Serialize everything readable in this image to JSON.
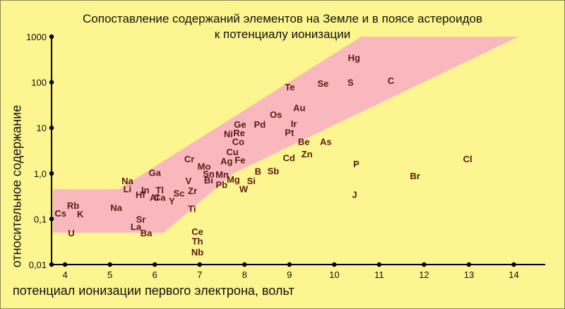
{
  "chart_data": {
    "type": "scatter",
    "title_lines": [
      "Сопоставление содержаний элементов на Земле и в поясе астероидов",
      "к потенциалу ионизации"
    ],
    "xlabel": "потенциал ионизации первого электрона, вольт",
    "ylabel": "относительное содержание",
    "xlim": [
      3.7,
      14.7
    ],
    "ylim": [
      0.01,
      1000
    ],
    "y_scale": "log",
    "x_ticks": [
      {
        "value": 4,
        "label": "4"
      },
      {
        "value": 5,
        "label": "5"
      },
      {
        "value": 6,
        "label": "6"
      },
      {
        "value": 7,
        "label": "7"
      },
      {
        "value": 8,
        "label": "8"
      },
      {
        "value": 9,
        "label": "9"
      },
      {
        "value": 10,
        "label": "10"
      },
      {
        "value": 11,
        "label": "11"
      },
      {
        "value": 12,
        "label": "12"
      },
      {
        "value": 13,
        "label": "13"
      },
      {
        "value": 14,
        "label": "14"
      }
    ],
    "y_ticks": [
      {
        "value": 0.01,
        "label": "0,01"
      },
      {
        "value": 0.1,
        "label": "0,1"
      },
      {
        "value": 1,
        "label": "1,0"
      },
      {
        "value": 10,
        "label": "10"
      },
      {
        "value": 100,
        "label": "100"
      },
      {
        "value": 1000,
        "label": "1000"
      }
    ],
    "band_color": "#f8b8be",
    "band_polygon": [
      [
        3.73,
        0.45
      ],
      [
        5.2,
        0.45
      ],
      [
        10.6,
        1000
      ],
      [
        14.1,
        1000
      ],
      [
        7.75,
        1.0
      ],
      [
        6.2,
        0.05
      ],
      [
        3.73,
        0.05
      ]
    ],
    "grid": false,
    "points": [
      {
        "label": "Cs",
        "x": 3.9,
        "y": 0.135
      },
      {
        "label": "Rb",
        "x": 4.18,
        "y": 0.2
      },
      {
        "label": "K",
        "x": 4.34,
        "y": 0.13
      },
      {
        "label": "U",
        "x": 4.14,
        "y": 0.05
      },
      {
        "label": "Na",
        "x": 5.14,
        "y": 0.18
      },
      {
        "label": "Na",
        "x": 5.39,
        "y": 0.7
      },
      {
        "label": "Li",
        "x": 5.39,
        "y": 0.46
      },
      {
        "label": "Hf",
        "x": 5.68,
        "y": 0.35
      },
      {
        "label": "Ga",
        "x": 6.0,
        "y": 1.05
      },
      {
        "label": "In",
        "x": 5.79,
        "y": 0.44
      },
      {
        "label": "Tl",
        "x": 6.11,
        "y": 0.44
      },
      {
        "label": "Al",
        "x": 5.99,
        "y": 0.3
      },
      {
        "label": "Ca",
        "x": 6.11,
        "y": 0.3
      },
      {
        "label": "Y",
        "x": 6.38,
        "y": 0.25
      },
      {
        "label": "Sc",
        "x": 6.54,
        "y": 0.37
      },
      {
        "label": "Sr",
        "x": 5.69,
        "y": 0.1
      },
      {
        "label": "La",
        "x": 5.58,
        "y": 0.068
      },
      {
        "label": "Ba",
        "x": 5.81,
        "y": 0.05
      },
      {
        "label": "Zr",
        "x": 6.84,
        "y": 0.42
      },
      {
        "label": "V",
        "x": 6.75,
        "y": 0.7
      },
      {
        "label": "Ti",
        "x": 6.83,
        "y": 0.17
      },
      {
        "label": "Ce",
        "x": 6.95,
        "y": 0.053
      },
      {
        "label": "Th",
        "x": 6.95,
        "y": 0.033
      },
      {
        "label": "Nb",
        "x": 6.95,
        "y": 0.019
      },
      {
        "label": "Cr",
        "x": 6.77,
        "y": 2.1
      },
      {
        "label": "Mo",
        "x": 7.1,
        "y": 1.45
      },
      {
        "label": "Sn",
        "x": 7.2,
        "y": 1.0
      },
      {
        "label": "Bi",
        "x": 7.2,
        "y": 0.72
      },
      {
        "label": "Pb",
        "x": 7.49,
        "y": 0.57
      },
      {
        "label": "Mn",
        "x": 7.5,
        "y": 0.95
      },
      {
        "label": "Mg",
        "x": 7.75,
        "y": 0.75
      },
      {
        "label": "W",
        "x": 7.98,
        "y": 0.46
      },
      {
        "label": "Si",
        "x": 8.15,
        "y": 0.7
      },
      {
        "label": "B",
        "x": 8.3,
        "y": 1.12
      },
      {
        "label": "Sb",
        "x": 8.64,
        "y": 1.15
      },
      {
        "label": "Ag",
        "x": 7.6,
        "y": 1.9
      },
      {
        "label": "Fe",
        "x": 7.9,
        "y": 2.0
      },
      {
        "label": "Cu",
        "x": 7.73,
        "y": 3.0
      },
      {
        "label": "Ni",
        "x": 7.64,
        "y": 7.5
      },
      {
        "label": "Co",
        "x": 7.86,
        "y": 5.0
      },
      {
        "label": "Re",
        "x": 7.88,
        "y": 7.9
      },
      {
        "label": "Ge",
        "x": 7.9,
        "y": 12.0
      },
      {
        "label": "Pd",
        "x": 8.34,
        "y": 12.0
      },
      {
        "label": "Os",
        "x": 8.7,
        "y": 20.0
      },
      {
        "label": "Pt",
        "x": 9.0,
        "y": 8.0
      },
      {
        "label": "Ir",
        "x": 9.1,
        "y": 12.5
      },
      {
        "label": "Au",
        "x": 9.22,
        "y": 28.0
      },
      {
        "label": "Te",
        "x": 9.01,
        "y": 80.0
      },
      {
        "label": "Se",
        "x": 9.75,
        "y": 95.0
      },
      {
        "label": "S",
        "x": 10.36,
        "y": 100.0
      },
      {
        "label": "Hg",
        "x": 10.44,
        "y": 350.0
      },
      {
        "label": "C",
        "x": 11.26,
        "y": 110.0
      },
      {
        "label": "Be",
        "x": 9.32,
        "y": 5.0
      },
      {
        "label": "As",
        "x": 9.81,
        "y": 5.0
      },
      {
        "label": "Cd",
        "x": 8.99,
        "y": 2.2
      },
      {
        "label": "Zn",
        "x": 9.39,
        "y": 2.7
      },
      {
        "label": "P",
        "x": 10.49,
        "y": 1.65
      },
      {
        "label": "J",
        "x": 10.45,
        "y": 0.35
      },
      {
        "label": "Br",
        "x": 11.8,
        "y": 0.9
      },
      {
        "label": "Cl",
        "x": 12.97,
        "y": 2.1
      }
    ]
  }
}
